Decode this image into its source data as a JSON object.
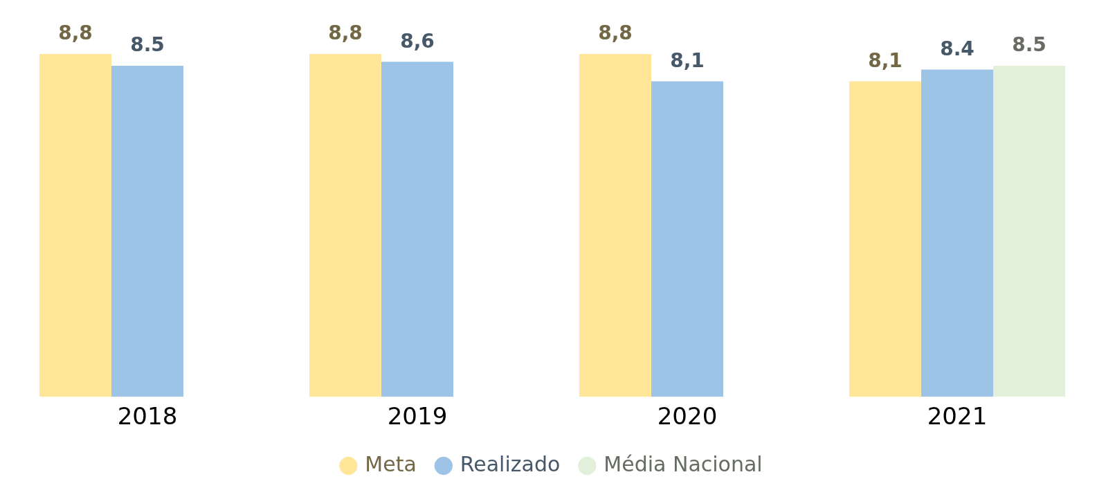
{
  "chart_data": {
    "type": "bar",
    "categories": [
      "2018",
      "2019",
      "2020",
      "2021"
    ],
    "series": [
      {
        "name": "Meta",
        "color": "#ffe699",
        "values": [
          8.8,
          8.8,
          8.8,
          8.1
        ],
        "value_labels": [
          "8,8",
          "8,8",
          "8,8",
          "8,1"
        ]
      },
      {
        "name": "Realizado",
        "color": "#9dc3e6",
        "values": [
          8.5,
          8.6,
          8.1,
          8.4
        ],
        "value_labels": [
          "8.5",
          "8,6",
          "8,1",
          "8.4"
        ]
      },
      {
        "name": "Média Nacional",
        "color": "#e2efda",
        "values": [
          null,
          null,
          null,
          8.5
        ],
        "value_labels": [
          null,
          null,
          null,
          "8.5"
        ]
      }
    ],
    "ylim": [
      0,
      8.8
    ],
    "legend": "bottom",
    "grid": false
  }
}
